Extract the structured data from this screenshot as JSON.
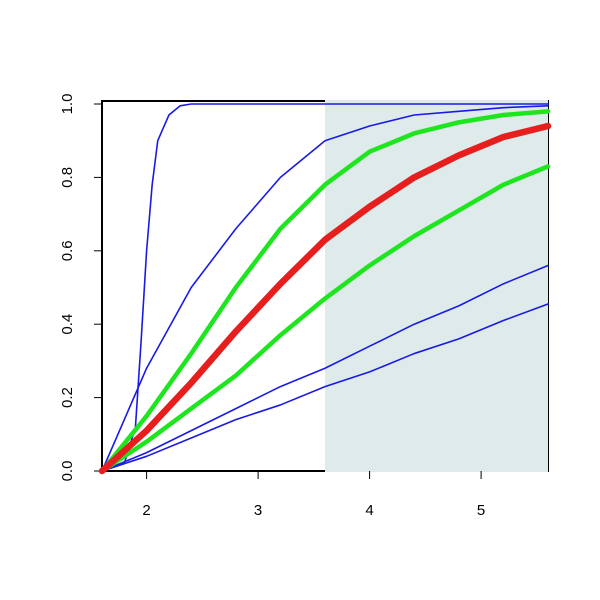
{
  "chart_data": {
    "type": "line",
    "xlim": [
      1.6,
      5.6
    ],
    "ylim": [
      0,
      1
    ],
    "xticks": [
      2,
      3,
      4,
      5
    ],
    "yticks": [
      {
        "value": 0,
        "label": "0.0"
      },
      0.2,
      0.4,
      0.6,
      0.8,
      {
        "value": 1,
        "label": "1.0"
      }
    ],
    "shade": {
      "x": [
        3.6,
        5.6
      ],
      "color": "#dfeaea"
    },
    "series": [
      {
        "color": "#1a1ae6",
        "width": 1.6,
        "x": [
          1.6,
          1.8,
          1.9,
          1.95,
          2.0,
          2.05,
          2.1,
          2.2,
          2.3,
          2.4,
          5.6
        ],
        "values": [
          0,
          0.02,
          0.12,
          0.35,
          0.6,
          0.78,
          0.9,
          0.97,
          0.995,
          1,
          1
        ]
      },
      {
        "color": "#1a1ae6",
        "width": 1.6,
        "x": [
          1.6,
          2.0,
          2.4,
          2.8,
          3.2,
          3.6,
          4.0,
          4.4,
          4.8,
          5.2,
          5.6
        ],
        "values": [
          0,
          0.28,
          0.5,
          0.66,
          0.8,
          0.9,
          0.94,
          0.97,
          0.98,
          0.99,
          0.995
        ]
      },
      {
        "color": "#1a1ae6",
        "width": 1.6,
        "x": [
          1.6,
          2.0,
          2.4,
          2.8,
          3.2,
          3.6,
          4.0,
          4.4,
          4.8,
          5.2,
          5.6
        ],
        "values": [
          0,
          0.05,
          0.11,
          0.17,
          0.23,
          0.28,
          0.34,
          0.4,
          0.45,
          0.51,
          0.56
        ]
      },
      {
        "color": "#1a1ae6",
        "width": 1.6,
        "x": [
          1.6,
          2.0,
          2.4,
          2.8,
          3.2,
          3.6,
          4.0,
          4.4,
          4.8,
          5.2,
          5.6
        ],
        "values": [
          0,
          0.04,
          0.09,
          0.14,
          0.18,
          0.23,
          0.27,
          0.32,
          0.36,
          0.41,
          0.455
        ]
      },
      {
        "color": "#1ee61e",
        "width": 4.5,
        "x": [
          1.6,
          2.0,
          2.4,
          2.8,
          3.2,
          3.6,
          4.0,
          4.4,
          4.8,
          5.2,
          5.6
        ],
        "values": [
          0,
          0.15,
          0.32,
          0.5,
          0.66,
          0.78,
          0.87,
          0.92,
          0.95,
          0.97,
          0.98
        ]
      },
      {
        "color": "#1ee61e",
        "width": 4.5,
        "x": [
          1.6,
          2.0,
          2.4,
          2.8,
          3.2,
          3.6,
          4.0,
          4.4,
          4.8,
          5.2,
          5.6
        ],
        "values": [
          0,
          0.08,
          0.17,
          0.26,
          0.37,
          0.47,
          0.56,
          0.64,
          0.71,
          0.78,
          0.83
        ]
      },
      {
        "color": "#e61e1e",
        "width": 6.5,
        "x": [
          1.6,
          2.0,
          2.4,
          2.8,
          3.2,
          3.6,
          4.0,
          4.4,
          4.8,
          5.2,
          5.6
        ],
        "values": [
          0,
          0.11,
          0.24,
          0.38,
          0.51,
          0.63,
          0.72,
          0.8,
          0.86,
          0.91,
          0.94
        ]
      }
    ]
  }
}
